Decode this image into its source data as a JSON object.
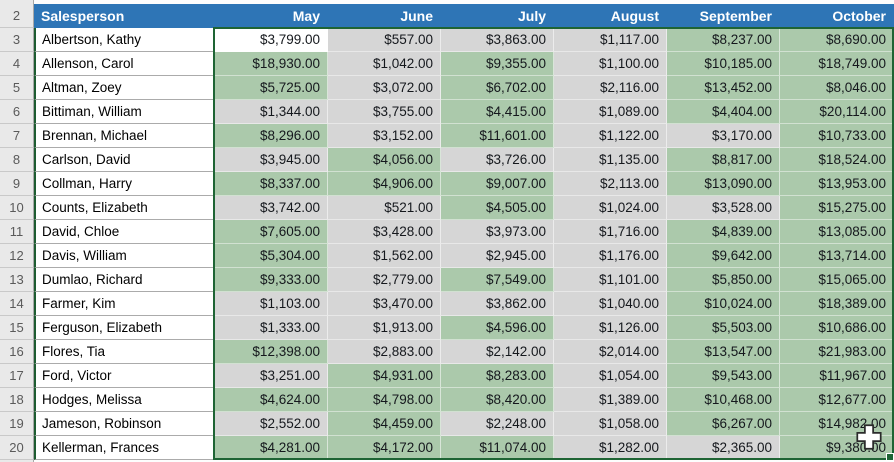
{
  "sheet": {
    "header_row_number": "2",
    "columns": [
      "Salesperson",
      "May",
      "June",
      "July",
      "August",
      "September",
      "October"
    ],
    "rows": [
      {
        "n": "3",
        "name": "Albertson, Kathy",
        "values": [
          "$3,799.00",
          "$557.00",
          "$3,863.00",
          "$1,117.00",
          "$8,237.00",
          "$8,690.00"
        ]
      },
      {
        "n": "4",
        "name": "Allenson, Carol",
        "values": [
          "$18,930.00",
          "$1,042.00",
          "$9,355.00",
          "$1,100.00",
          "$10,185.00",
          "$18,749.00"
        ]
      },
      {
        "n": "5",
        "name": "Altman, Zoey",
        "values": [
          "$5,725.00",
          "$3,072.00",
          "$6,702.00",
          "$2,116.00",
          "$13,452.00",
          "$8,046.00"
        ]
      },
      {
        "n": "6",
        "name": "Bittiman, William",
        "values": [
          "$1,344.00",
          "$3,755.00",
          "$4,415.00",
          "$1,089.00",
          "$4,404.00",
          "$20,114.00"
        ]
      },
      {
        "n": "7",
        "name": "Brennan, Michael",
        "values": [
          "$8,296.00",
          "$3,152.00",
          "$11,601.00",
          "$1,122.00",
          "$3,170.00",
          "$10,733.00"
        ]
      },
      {
        "n": "8",
        "name": "Carlson, David",
        "values": [
          "$3,945.00",
          "$4,056.00",
          "$3,726.00",
          "$1,135.00",
          "$8,817.00",
          "$18,524.00"
        ]
      },
      {
        "n": "9",
        "name": "Collman, Harry",
        "values": [
          "$8,337.00",
          "$4,906.00",
          "$9,007.00",
          "$2,113.00",
          "$13,090.00",
          "$13,953.00"
        ]
      },
      {
        "n": "10",
        "name": "Counts, Elizabeth",
        "values": [
          "$3,742.00",
          "$521.00",
          "$4,505.00",
          "$1,024.00",
          "$3,528.00",
          "$15,275.00"
        ]
      },
      {
        "n": "11",
        "name": "David, Chloe",
        "values": [
          "$7,605.00",
          "$3,428.00",
          "$3,973.00",
          "$1,716.00",
          "$4,839.00",
          "$13,085.00"
        ]
      },
      {
        "n": "12",
        "name": "Davis, William",
        "values": [
          "$5,304.00",
          "$1,562.00",
          "$2,945.00",
          "$1,176.00",
          "$9,642.00",
          "$13,714.00"
        ]
      },
      {
        "n": "13",
        "name": "Dumlao, Richard",
        "values": [
          "$9,333.00",
          "$2,779.00",
          "$7,549.00",
          "$1,101.00",
          "$5,850.00",
          "$15,065.00"
        ]
      },
      {
        "n": "14",
        "name": "Farmer, Kim",
        "values": [
          "$1,103.00",
          "$3,470.00",
          "$3,862.00",
          "$1,040.00",
          "$10,024.00",
          "$18,389.00"
        ]
      },
      {
        "n": "15",
        "name": "Ferguson, Elizabeth",
        "values": [
          "$1,333.00",
          "$1,913.00",
          "$4,596.00",
          "$1,126.00",
          "$5,503.00",
          "$10,686.00"
        ]
      },
      {
        "n": "16",
        "name": "Flores, Tia",
        "values": [
          "$12,398.00",
          "$2,883.00",
          "$2,142.00",
          "$2,014.00",
          "$13,547.00",
          "$21,983.00"
        ]
      },
      {
        "n": "17",
        "name": "Ford, Victor",
        "values": [
          "$3,251.00",
          "$4,931.00",
          "$8,283.00",
          "$1,054.00",
          "$9,543.00",
          "$11,967.00"
        ]
      },
      {
        "n": "18",
        "name": "Hodges, Melissa",
        "values": [
          "$4,624.00",
          "$4,798.00",
          "$8,420.00",
          "$1,389.00",
          "$10,468.00",
          "$12,677.00"
        ]
      },
      {
        "n": "19",
        "name": "Jameson, Robinson",
        "values": [
          "$2,552.00",
          "$4,459.00",
          "$2,248.00",
          "$1,058.00",
          "$6,267.00",
          "$14,982.00"
        ]
      },
      {
        "n": "20",
        "name": "Kellerman, Frances",
        "values": [
          "$4,281.00",
          "$4,172.00",
          "$11,074.00",
          "$1,282.00",
          "$2,365.00",
          "$9,380.00"
        ]
      }
    ],
    "conditional_format": {
      "rule": "greater_than",
      "threshold": 4000,
      "fill": "#ABC9AB"
    },
    "selection": {
      "range": "B3:G20",
      "active_cell": "B3",
      "active_row_number": "3",
      "active_value_col_index": 0
    },
    "colors": {
      "header_bg": "#2E75B6",
      "header_text": "#FFFFFF",
      "green_fill": "#ABC9AB",
      "gray_fill": "#D6D6D6",
      "active_cell_bg": "#FFFFFF",
      "selection_border": "#1E6434",
      "gutter_bg": "#E9E9E9"
    },
    "icons": {
      "cursor": "excel-cell-cross-cursor",
      "fill_handle": "selection-fill-handle"
    }
  }
}
